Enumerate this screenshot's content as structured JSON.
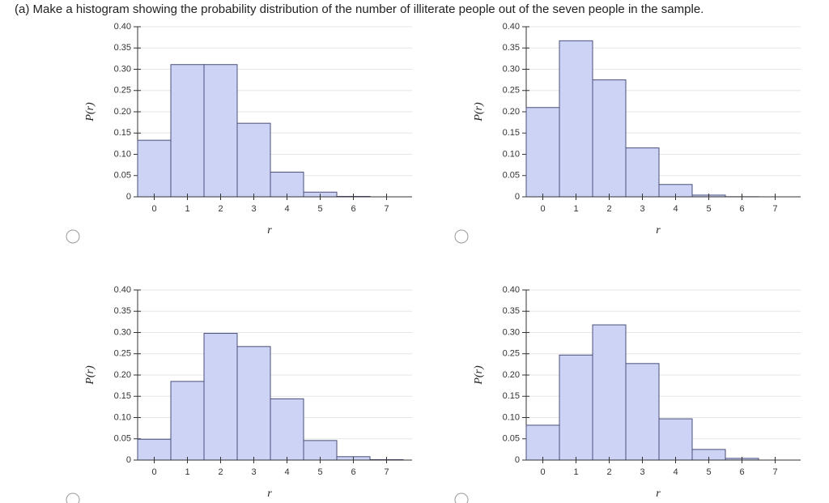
{
  "question": "(a) Make a histogram showing the probability distribution of the number of illiterate people out of the seven people in the sample.",
  "chart_data": [
    {
      "type": "bar",
      "xlabel": "r",
      "ylabel": "P(r)",
      "categories": [
        "0",
        "1",
        "2",
        "3",
        "4",
        "5",
        "6",
        "7"
      ],
      "values": [
        0.133,
        0.311,
        0.311,
        0.173,
        0.058,
        0.011,
        0.001,
        0
      ],
      "color": "#ccd3f5",
      "edge_color": "#4a4f7a",
      "ylim": [
        0,
        0.4
      ],
      "yticks": [
        0,
        0.05,
        {
          "value": 0.1,
          "label": "0.10"
        },
        0.15,
        {
          "value": 0.2,
          "label": "0.20"
        },
        0.25,
        {
          "value": 0.3,
          "label": "0.30"
        },
        0.35,
        {
          "value": 0.4,
          "label": "0.40"
        }
      ],
      "grid": true
    },
    {
      "type": "bar",
      "xlabel": "r",
      "ylabel": "P(r)",
      "categories": [
        "0",
        "1",
        "2",
        "3",
        "4",
        "5",
        "6",
        "7"
      ],
      "values": [
        0.21,
        0.367,
        0.275,
        0.115,
        0.029,
        0.004,
        0.0003,
        0
      ],
      "color": "#ccd3f5",
      "edge_color": "#4a4f7a",
      "ylim": [
        0,
        0.4
      ],
      "yticks": [
        0,
        0.05,
        {
          "value": 0.1,
          "label": "0.10"
        },
        0.15,
        {
          "value": 0.2,
          "label": "0.20"
        },
        0.25,
        {
          "value": 0.3,
          "label": "0.30"
        },
        0.35,
        {
          "value": 0.4,
          "label": "0.40"
        }
      ],
      "grid": true
    },
    {
      "type": "bar",
      "xlabel": "r",
      "ylabel": "P(r)",
      "categories": [
        "0",
        "1",
        "2",
        "3",
        "4",
        "5",
        "6",
        "7"
      ],
      "values": [
        0.049,
        0.185,
        0.298,
        0.267,
        0.144,
        0.046,
        0.008,
        0.001
      ],
      "color": "#ccd3f5",
      "edge_color": "#4a4f7a",
      "ylim": [
        0,
        0.4
      ],
      "yticks": [
        0,
        0.05,
        {
          "value": 0.1,
          "label": "0.10"
        },
        0.15,
        {
          "value": 0.2,
          "label": "0.20"
        },
        0.25,
        {
          "value": 0.3,
          "label": "0.30"
        },
        0.35,
        {
          "value": 0.4,
          "label": "0.40"
        }
      ],
      "grid": true
    },
    {
      "type": "bar",
      "xlabel": "r",
      "ylabel": "P(r)",
      "categories": [
        "0",
        "1",
        "2",
        "3",
        "4",
        "5",
        "6",
        "7"
      ],
      "values": [
        0.082,
        0.247,
        0.318,
        0.227,
        0.097,
        0.025,
        0.004,
        0
      ],
      "color": "#ccd3f5",
      "edge_color": "#4a4f7a",
      "ylim": [
        0,
        0.4
      ],
      "yticks": [
        0,
        0.05,
        {
          "value": 0.1,
          "label": "0.10"
        },
        0.15,
        {
          "value": 0.2,
          "label": "0.20"
        },
        0.25,
        {
          "value": 0.3,
          "label": "0.30"
        },
        0.35,
        {
          "value": 0.4,
          "label": "0.40"
        }
      ],
      "grid": true
    }
  ]
}
